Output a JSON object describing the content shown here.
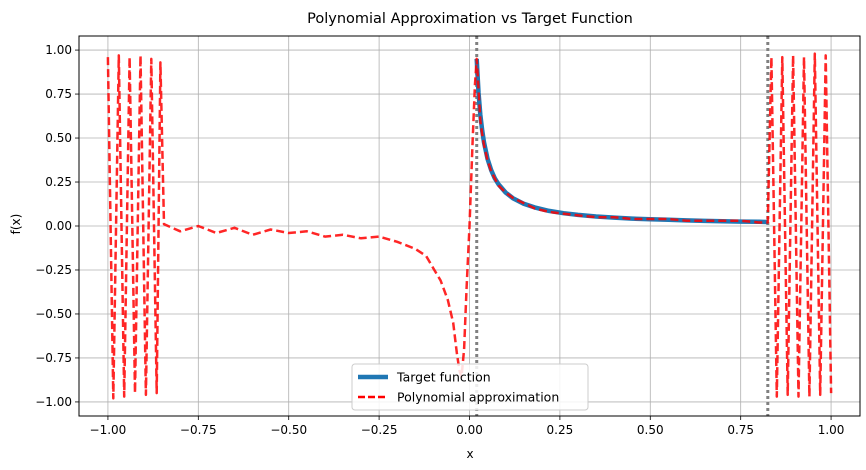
{
  "chart_data": {
    "type": "line",
    "title": "Polynomial Approximation vs Target Function",
    "xlabel": "x",
    "ylabel": "f(x)",
    "xlim": [
      -1.08,
      1.08
    ],
    "ylim": [
      -1.08,
      1.08
    ],
    "xticks": [
      -1.0,
      -0.75,
      -0.5,
      -0.25,
      0.0,
      0.25,
      0.5,
      0.75,
      1.0
    ],
    "xtick_labels": [
      "−1.00",
      "−0.75",
      "−0.50",
      "−0.25",
      "0.00",
      "0.25",
      "0.50",
      "0.75",
      "1.00"
    ],
    "yticks": [
      -1.0,
      -0.75,
      -0.5,
      -0.25,
      0.0,
      0.25,
      0.5,
      0.75,
      1.0
    ],
    "ytick_labels": [
      "−1.00",
      "−0.75",
      "−0.50",
      "−0.25",
      "0.00",
      "0.25",
      "0.50",
      "0.75",
      "1.00"
    ],
    "grid": true,
    "legend_position": "lower center",
    "vlines": [
      {
        "x": 0.02,
        "color": "#808080",
        "style": "dotted"
      },
      {
        "x": 0.825,
        "color": "#808080",
        "style": "dotted"
      }
    ],
    "series": [
      {
        "name": "Target function",
        "color": "#1f77b4",
        "style": "solid",
        "x": [
          0.02,
          0.022,
          0.025,
          0.03,
          0.035,
          0.04,
          0.05,
          0.06,
          0.07,
          0.08,
          0.1,
          0.12,
          0.15,
          0.18,
          0.22,
          0.26,
          0.3,
          0.35,
          0.4,
          0.45,
          0.5,
          0.55,
          0.6,
          0.65,
          0.7,
          0.75,
          0.8,
          0.825
        ],
        "y": [
          0.95,
          0.864,
          0.76,
          0.633,
          0.543,
          0.475,
          0.38,
          0.317,
          0.271,
          0.238,
          0.19,
          0.158,
          0.127,
          0.106,
          0.086,
          0.073,
          0.063,
          0.054,
          0.048,
          0.042,
          0.038,
          0.035,
          0.032,
          0.029,
          0.027,
          0.025,
          0.024,
          0.023
        ]
      },
      {
        "name": "Polynomial approximation",
        "color": "#ff0000",
        "style": "dashed",
        "x": [
          -1.0,
          -0.985,
          -0.97,
          -0.955,
          -0.94,
          -0.925,
          -0.91,
          -0.895,
          -0.88,
          -0.865,
          -0.855,
          -0.845,
          -0.8,
          -0.75,
          -0.7,
          -0.65,
          -0.6,
          -0.55,
          -0.5,
          -0.45,
          -0.4,
          -0.35,
          -0.3,
          -0.25,
          -0.2,
          -0.15,
          -0.12,
          -0.1,
          -0.08,
          -0.06,
          -0.045,
          -0.035,
          -0.028,
          -0.022,
          -0.015,
          -0.008,
          0.0,
          0.008,
          0.015,
          0.02,
          0.025,
          0.03,
          0.035,
          0.04,
          0.05,
          0.06,
          0.07,
          0.08,
          0.1,
          0.12,
          0.15,
          0.18,
          0.22,
          0.26,
          0.3,
          0.35,
          0.4,
          0.45,
          0.5,
          0.55,
          0.6,
          0.65,
          0.7,
          0.75,
          0.8,
          0.825,
          0.835,
          0.85,
          0.865,
          0.88,
          0.895,
          0.91,
          0.925,
          0.94,
          0.955,
          0.97,
          0.985,
          1.0
        ],
        "y": [
          0.96,
          -0.98,
          0.97,
          -0.97,
          0.96,
          -0.95,
          0.97,
          -0.96,
          0.95,
          -0.95,
          0.93,
          0.01,
          -0.03,
          0.0,
          -0.04,
          -0.01,
          -0.05,
          -0.02,
          -0.04,
          -0.03,
          -0.06,
          -0.05,
          -0.07,
          -0.06,
          -0.09,
          -0.13,
          -0.17,
          -0.24,
          -0.31,
          -0.42,
          -0.55,
          -0.72,
          -0.82,
          -0.86,
          -0.7,
          -0.35,
          0.0,
          0.45,
          0.8,
          0.95,
          0.78,
          0.6,
          0.52,
          0.46,
          0.37,
          0.31,
          0.27,
          0.23,
          0.19,
          0.16,
          0.13,
          0.1,
          0.08,
          0.07,
          0.06,
          0.05,
          0.05,
          0.04,
          0.04,
          0.04,
          0.03,
          0.03,
          0.03,
          0.03,
          0.02,
          0.02,
          0.96,
          -0.97,
          0.96,
          -0.96,
          0.97,
          -0.97,
          0.96,
          -0.97,
          0.98,
          -0.96,
          0.97,
          -0.95
        ]
      }
    ]
  }
}
